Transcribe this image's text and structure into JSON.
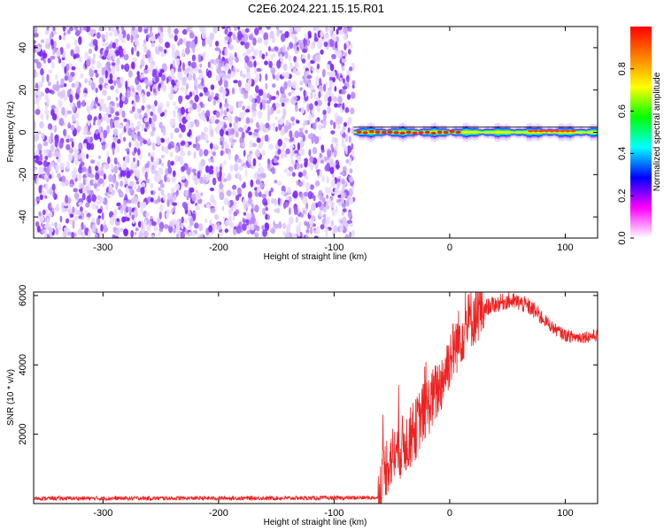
{
  "title": "C2E6.2024.221.15.15.R01",
  "chart_data": [
    {
      "type": "heatmap",
      "xlabel": "Height of straight line (km)",
      "ylabel": "Frequency (Hz)",
      "xlim": [
        -360,
        128
      ],
      "ylim": [
        -50,
        50
      ],
      "xticks": [
        -300,
        -200,
        -100,
        0,
        100
      ],
      "xtick_labels": [
        "-300",
        "-200",
        "-100",
        "0",
        "100"
      ],
      "yticks": [
        -40,
        -20,
        0,
        20,
        40
      ],
      "ytick_labels": [
        "-40",
        "-20",
        "0",
        "20",
        "40"
      ],
      "noise_region_x": [
        -360,
        -83
      ],
      "signal_region_x": [
        -83,
        128
      ],
      "signal_center_frequency": 0,
      "colorbar": {
        "label": "Normalized spectral amplitude",
        "range": [
          0,
          1
        ],
        "ticks": [
          0,
          0.2,
          0.4,
          0.6,
          0.8
        ],
        "tick_labels": [
          "0.0",
          "0.2",
          "0.4",
          "0.6",
          "0.8"
        ],
        "colors": [
          "#ffffff",
          "#ff00ff",
          "#0000ff",
          "#00ffff",
          "#00ff00",
          "#ffff00",
          "#ff8000",
          "#ff0000"
        ]
      },
      "grid": false
    },
    {
      "type": "line",
      "xlabel": "Height of straight line (km)",
      "ylabel": "SNR (10 * v/v)",
      "xlim": [
        -360,
        128
      ],
      "ylim": [
        0,
        6100
      ],
      "xticks": [
        -300,
        -200,
        -100,
        0,
        100
      ],
      "xtick_labels": [
        "-300",
        "-200",
        "-100",
        "0",
        "100"
      ],
      "yticks": [
        2000,
        4000,
        6000
      ],
      "ytick_labels": [
        "2000",
        "4000",
        "6000"
      ],
      "color": "#ee2222",
      "x": [
        -360,
        -300,
        -200,
        -100,
        -62,
        -60,
        -55,
        -50,
        -45,
        -40,
        -35,
        -30,
        -25,
        -20,
        -15,
        -10,
        -5,
        0,
        10,
        20,
        30,
        40,
        50,
        60,
        70,
        80,
        90,
        100,
        110,
        120,
        128
      ],
      "y": [
        150,
        150,
        155,
        160,
        170,
        450,
        1100,
        1350,
        1500,
        1700,
        1850,
        2100,
        2500,
        2750,
        3000,
        3300,
        3700,
        4200,
        4900,
        5400,
        5650,
        5750,
        5850,
        5800,
        5650,
        5350,
        5050,
        4850,
        4800,
        4820,
        4850
      ],
      "grid": false
    }
  ]
}
